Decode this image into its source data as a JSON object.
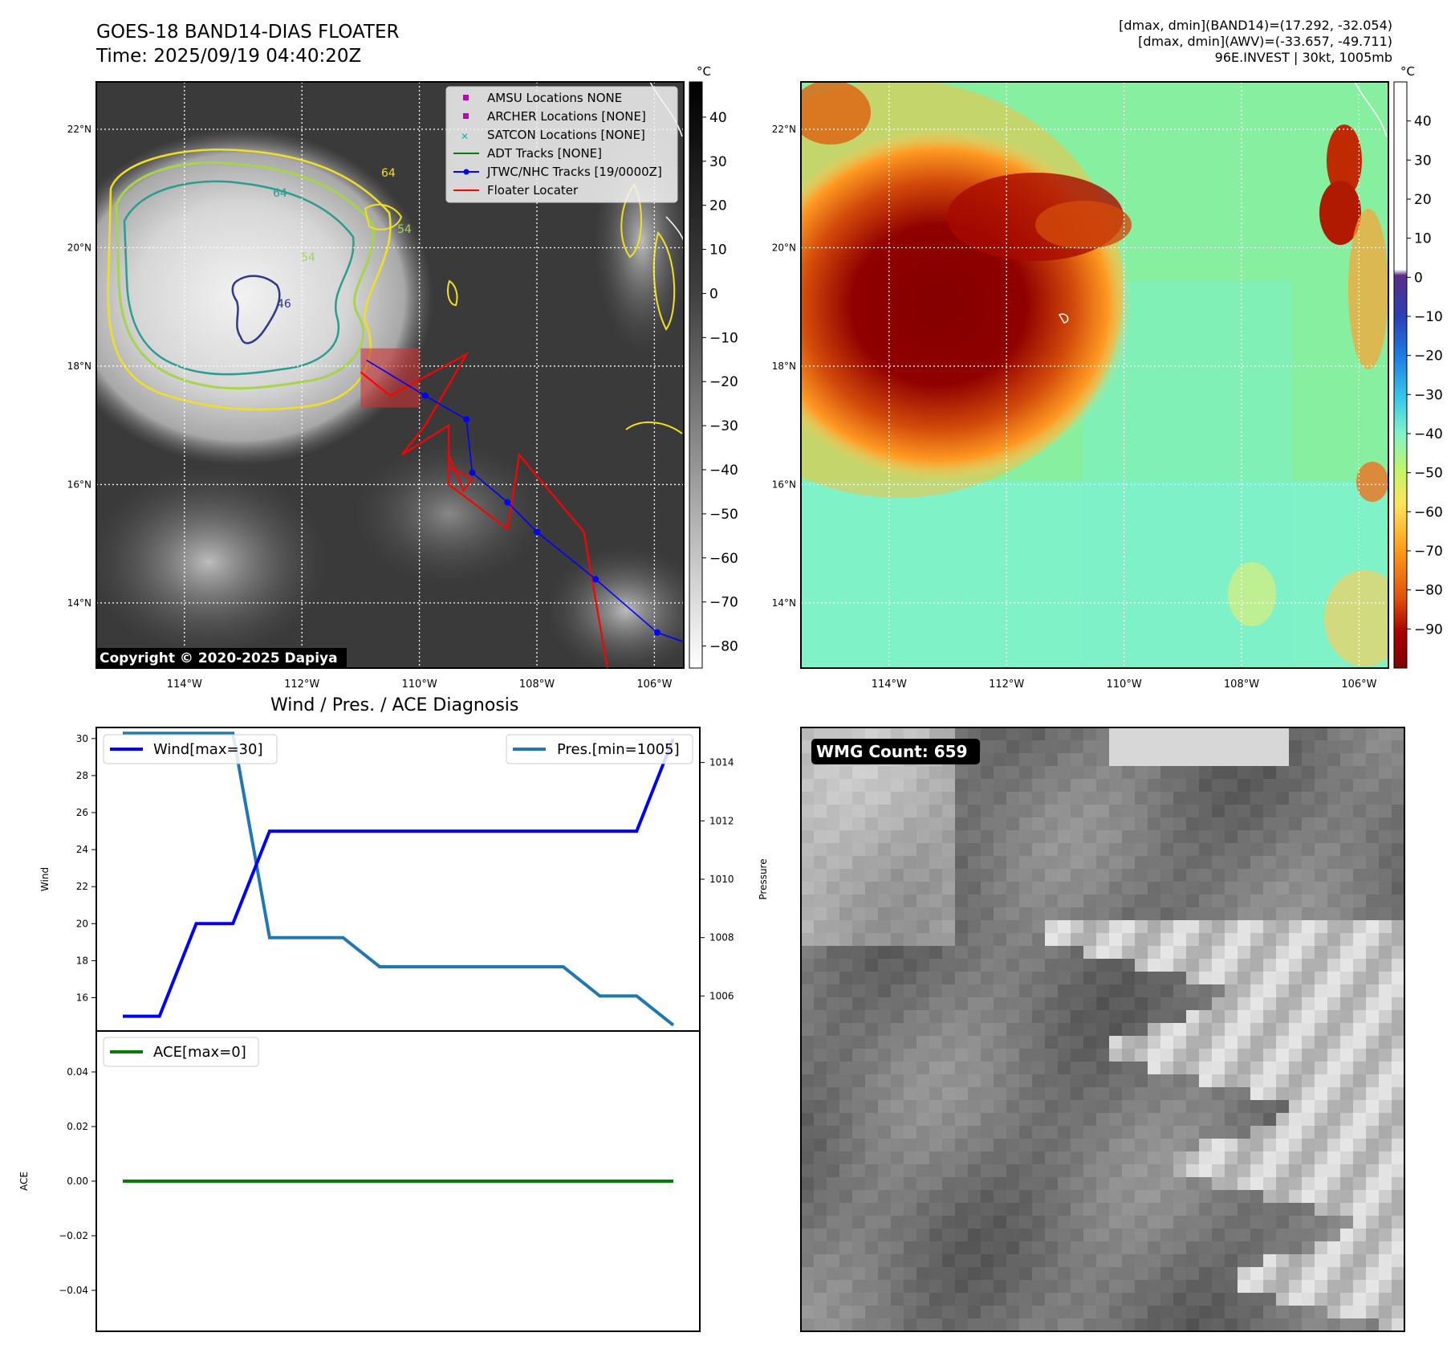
{
  "header": {
    "title": "GOES-18 BAND14-DIAS FLOATER",
    "time": "Time: 2025/09/19 04:40:20Z",
    "info": [
      "[dmax, dmin](BAND14)=(17.292, -32.054)",
      "[dmax, dmin](AWV)=(-33.657, -49.711)",
      "96E.INVEST | 30kt, 1005mb"
    ]
  },
  "map": {
    "lon_ticks": [
      "114°W",
      "112°W",
      "110°W",
      "108°W",
      "106°W"
    ],
    "lat_ticks": [
      "22°N",
      "20°N",
      "18°N",
      "16°N",
      "14°N"
    ],
    "lon_range": [
      -115.5,
      -105.5
    ],
    "lat_range": [
      12.9,
      22.8
    ],
    "contour_labels": [
      "64",
      "54",
      "46",
      "54",
      "64"
    ],
    "copyright": "Copyright © 2020-2025 Dapiya",
    "legend": [
      {
        "label": "AMSU Locations NONE",
        "marker": "square",
        "color": "#c000c0"
      },
      {
        "label": "ARCHER Locations [NONE]",
        "marker": "square",
        "color": "#c000c0"
      },
      {
        "label": "SATCON Locations [NONE]",
        "marker": "x",
        "color": "#22b0b0"
      },
      {
        "label": "ADT Tracks [NONE]",
        "marker": "line",
        "color": "#008000"
      },
      {
        "label": "JTWC/NHC Tracks [19/0000Z]",
        "marker": "line-dot",
        "color": "#0000ff"
      },
      {
        "label": "Floater Locater",
        "marker": "line",
        "color": "#ff0000"
      }
    ],
    "jtwc_track": [
      [
        -105.1,
        13.2
      ],
      [
        -105.95,
        13.5
      ],
      [
        -107.0,
        14.4
      ],
      [
        -108.0,
        15.2
      ],
      [
        -108.5,
        15.7
      ],
      [
        -109.1,
        16.2
      ],
      [
        -109.2,
        17.1
      ],
      [
        -109.9,
        17.5
      ],
      [
        -110.9,
        18.1
      ]
    ],
    "floater_track": [
      [
        -106.0,
        12.85
      ],
      [
        -106.8,
        12.9
      ],
      [
        -107.2,
        15.2
      ],
      [
        -108.3,
        16.5
      ],
      [
        -108.5,
        15.25
      ],
      [
        -109.5,
        16.0
      ],
      [
        -109.5,
        16.5
      ],
      [
        -109.25,
        15.9
      ],
      [
        -109.1,
        16.1
      ],
      [
        -109.5,
        16.3
      ],
      [
        -109.5,
        17.0
      ],
      [
        -110.3,
        16.5
      ],
      [
        -109.9,
        17.0
      ],
      [
        -109.2,
        18.2
      ],
      [
        -110.5,
        17.5
      ],
      [
        -111.0,
        17.9
      ]
    ],
    "floater_box": {
      "lon": [
        -111.0,
        -110.0
      ],
      "lat": [
        17.3,
        18.3
      ]
    },
    "colorbar1": {
      "unit": "°C",
      "ticks": [
        "40",
        "30",
        "20",
        "10",
        "0",
        "−10",
        "−20",
        "−30",
        "−40",
        "−50",
        "−60",
        "−70",
        "−80"
      ],
      "range": [
        48,
        -85
      ]
    },
    "colorbar2": {
      "unit": "°C",
      "ticks": [
        "40",
        "30",
        "20",
        "10",
        "0",
        "−10",
        "−20",
        "−30",
        "−40",
        "−50",
        "−60",
        "−70",
        "−80",
        "−90"
      ],
      "range": [
        50,
        -100
      ]
    }
  },
  "wmg": {
    "label": "WMG Count: 659"
  },
  "chart_data": [
    {
      "type": "line",
      "title": "Wind / Pres. / ACE Diagnosis",
      "ylabel": "Wind",
      "y2label": "Pressure",
      "ylim": [
        14.2,
        30.6
      ],
      "y2lim": [
        1004.8,
        1015.2
      ],
      "yticks": [
        16,
        18,
        20,
        22,
        24,
        26,
        28,
        30
      ],
      "y2ticks": [
        1006,
        1008,
        1010,
        1012,
        1014
      ],
      "x": [
        0,
        1,
        2,
        3,
        4,
        5,
        6,
        7,
        8,
        9,
        10,
        11,
        12,
        13,
        14,
        15
      ],
      "series": [
        {
          "name": "Wind[max=30]",
          "axis": "left",
          "color": "#0000ff",
          "values": [
            15,
            15,
            20,
            20,
            25,
            25,
            25,
            25,
            25,
            25,
            25,
            25,
            25,
            25,
            25,
            30
          ]
        },
        {
          "name": "Pres.[min=1005]",
          "axis": "right",
          "color": "#1f77b4",
          "values": [
            1015,
            1015,
            1015,
            1015,
            1008,
            1008,
            1008,
            1007,
            1007,
            1007,
            1007,
            1007,
            1007,
            1006,
            1006,
            1005
          ]
        }
      ]
    },
    {
      "type": "line",
      "ylabel": "ACE",
      "ylim": [
        -0.055,
        0.055
      ],
      "yticks": [
        0.04,
        0.02,
        0.0,
        -0.02,
        -0.04
      ],
      "ytick_labels": [
        "0.04",
        "0.02",
        "0.00",
        "−0.02",
        "−0.04"
      ],
      "x": [
        0,
        1,
        2,
        3,
        4,
        5,
        6,
        7,
        8,
        9,
        10,
        11,
        12,
        13,
        14,
        15
      ],
      "series": [
        {
          "name": "ACE[max=0]",
          "color": "#008000",
          "values": [
            0,
            0,
            0,
            0,
            0,
            0,
            0,
            0,
            0,
            0,
            0,
            0,
            0,
            0,
            0,
            0
          ]
        }
      ]
    }
  ]
}
